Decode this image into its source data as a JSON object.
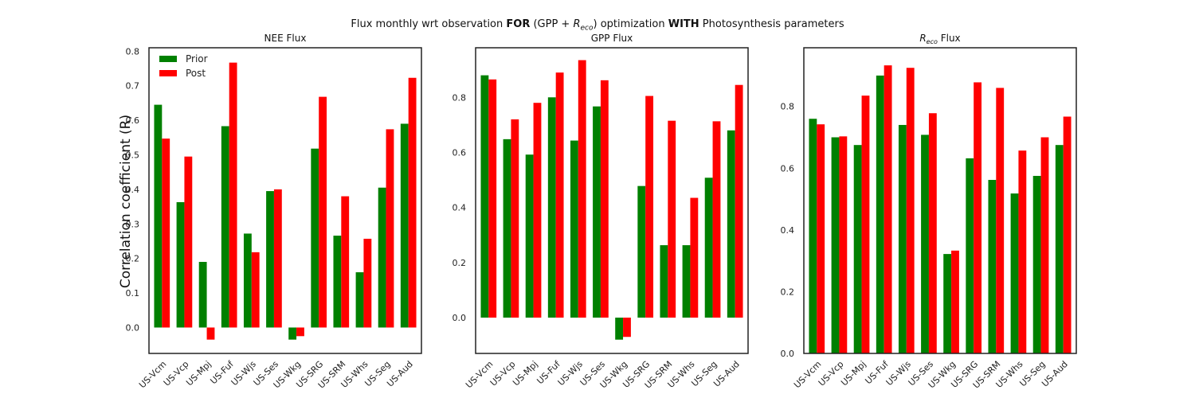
{
  "title": {
    "before": "Flux monthly wrt observation ",
    "bold1": "FOR",
    "middle": " (GPP + ",
    "reco_sym": "R",
    "reco_sub": "eco",
    "after": ") optimization ",
    "bold2": "WITH",
    "end": " Photosynthesis parameters"
  },
  "ylabel": "Correlation coefficient (R)",
  "legend": [
    "Prior",
    "Post"
  ],
  "colors": {
    "prior": "#008000",
    "post": "#ff0000"
  },
  "chart_data": [
    {
      "type": "bar",
      "title": "NEE Flux",
      "categories": [
        "US-Vcm",
        "US-Vcp",
        "US-Mpj",
        "US-Fuf",
        "US-Wjs",
        "US-Ses",
        "US-Wkg",
        "US-SRG",
        "US-SRM",
        "US-Whs",
        "US-Seg",
        "US-Aud"
      ],
      "series": [
        {
          "name": "Prior",
          "values": [
            0.645,
            0.363,
            0.19,
            0.583,
            0.272,
            0.395,
            -0.035,
            0.518,
            0.266,
            0.16,
            0.405,
            0.59
          ]
        },
        {
          "name": "Post",
          "values": [
            0.547,
            0.495,
            -0.035,
            0.767,
            0.218,
            0.4,
            -0.025,
            0.668,
            0.38,
            0.257,
            0.574,
            0.723
          ]
        }
      ],
      "ylim": [
        -0.075,
        0.81
      ],
      "yticks": [
        0.0,
        0.1,
        0.2,
        0.3,
        0.4,
        0.5,
        0.6,
        0.7,
        0.8
      ],
      "legend_position": "upper-left"
    },
    {
      "type": "bar",
      "title": "GPP Flux",
      "categories": [
        "US-Vcm",
        "US-Vcp",
        "US-Mpj",
        "US-Fuf",
        "US-Wjs",
        "US-Ses",
        "US-Wkg",
        "US-SRG",
        "US-SRM",
        "US-Whs",
        "US-Seg",
        "US-Aud"
      ],
      "series": [
        {
          "name": "Prior",
          "values": [
            0.88,
            0.648,
            0.592,
            0.8,
            0.643,
            0.767,
            -0.08,
            0.478,
            0.263,
            0.263,
            0.508,
            0.68
          ]
        },
        {
          "name": "Post",
          "values": [
            0.865,
            0.72,
            0.78,
            0.89,
            0.935,
            0.862,
            -0.07,
            0.805,
            0.715,
            0.435,
            0.713,
            0.845
          ]
        }
      ],
      "ylim": [
        -0.13,
        0.98
      ],
      "yticks": [
        0.0,
        0.2,
        0.4,
        0.6,
        0.8
      ]
    },
    {
      "type": "bar",
      "title_sym": "R",
      "title_sub": "eco",
      "title_rest": " Flux",
      "categories": [
        "US-Vcm",
        "US-Vcp",
        "US-Mpj",
        "US-Fuf",
        "US-Wjs",
        "US-Ses",
        "US-Wkg",
        "US-SRG",
        "US-SRM",
        "US-Whs",
        "US-Seg",
        "US-Aud"
      ],
      "series": [
        {
          "name": "Prior",
          "values": [
            0.76,
            0.7,
            0.675,
            0.9,
            0.74,
            0.708,
            0.322,
            0.632,
            0.562,
            0.518,
            0.575,
            0.675
          ]
        },
        {
          "name": "Post",
          "values": [
            0.742,
            0.703,
            0.835,
            0.933,
            0.925,
            0.778,
            0.333,
            0.878,
            0.86,
            0.657,
            0.7,
            0.767
          ]
        }
      ],
      "ylim": [
        0.0,
        0.99
      ],
      "yticks": [
        0.0,
        0.2,
        0.4,
        0.6,
        0.8
      ]
    }
  ]
}
